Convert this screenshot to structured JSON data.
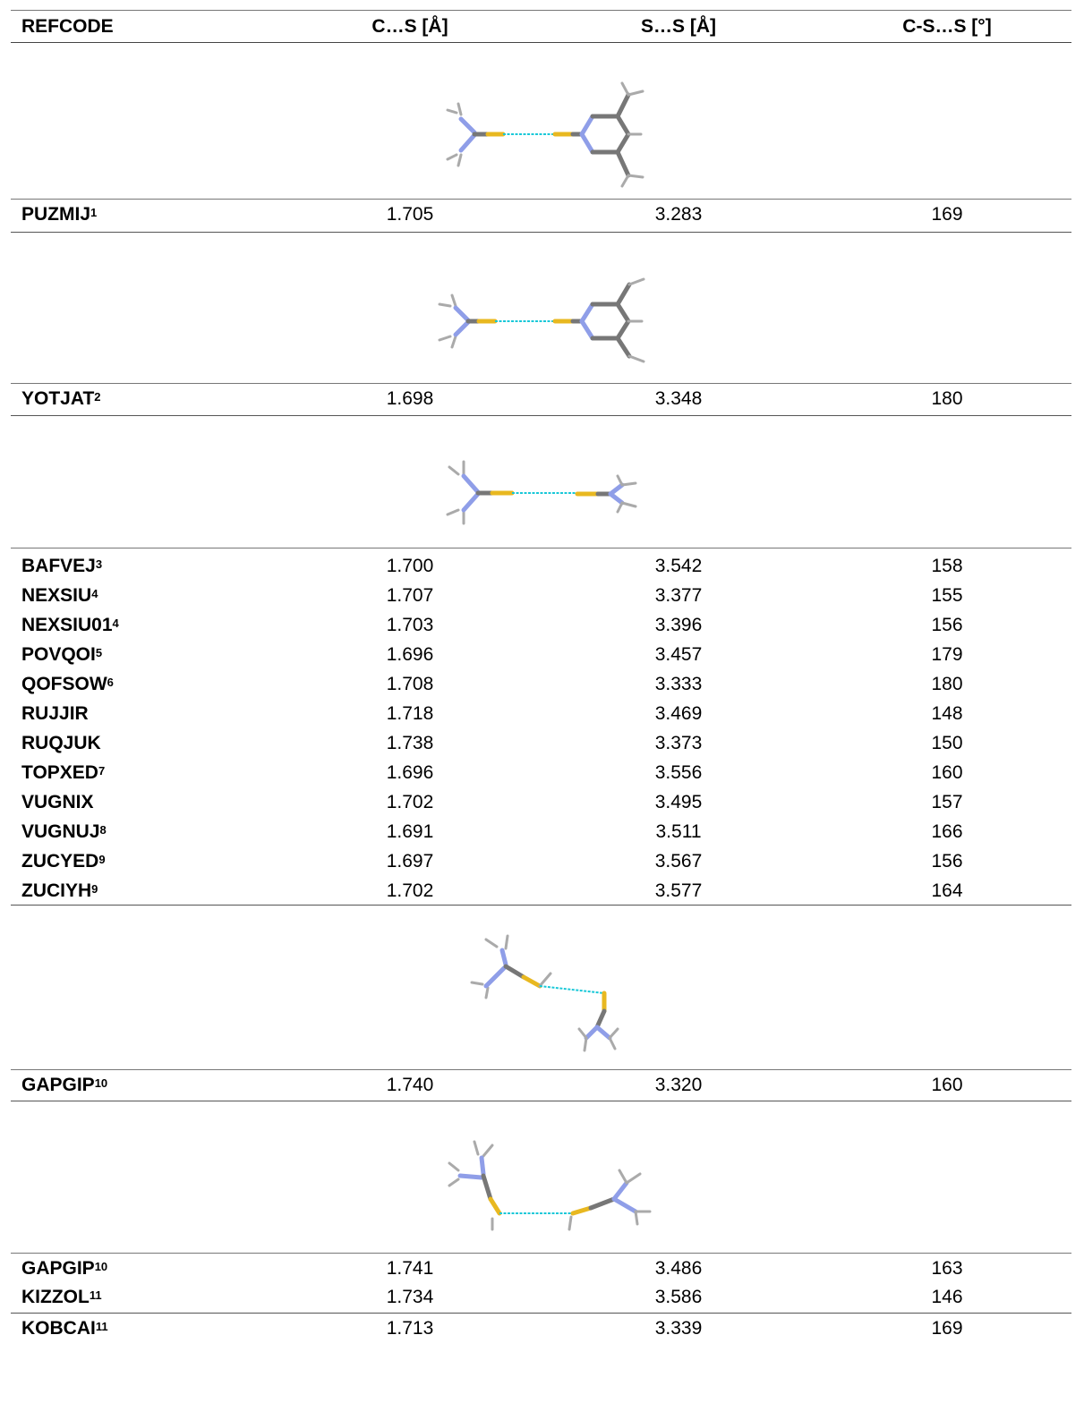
{
  "header": {
    "col0": "REFCODE",
    "col1": "C…S [Å]",
    "col2": "S…S [Å]",
    "col3": "C-S…S [°]"
  },
  "rows": [
    {
      "code": "PUZMIJ",
      "ref": "1",
      "cs": "1.705",
      "ss": "3.283",
      "ang": "169"
    },
    {
      "code": "YOTJAT",
      "ref": "2",
      "cs": "1.698",
      "ss": "3.348",
      "ang": "180"
    },
    {
      "code": "BAFVEJ",
      "ref": "3",
      "cs": "1.700",
      "ss": "3.542",
      "ang": "158"
    },
    {
      "code": "NEXSIU",
      "ref": "4",
      "cs": "1.707",
      "ss": "3.377",
      "ang": "155"
    },
    {
      "code": "NEXSIU01",
      "ref": "4",
      "cs": "1.703",
      "ss": "3.396",
      "ang": "156"
    },
    {
      "code": "POVQOI",
      "ref": "5",
      "cs": "1.696",
      "ss": "3.457",
      "ang": "179"
    },
    {
      "code": "QOFSOW",
      "ref": "6",
      "cs": "1.708",
      "ss": "3.333",
      "ang": "180"
    },
    {
      "code": "RUJJIR",
      "ref": "",
      "cs": "1.718",
      "ss": "3.469",
      "ang": "148"
    },
    {
      "code": "RUQJUK",
      "ref": "",
      "cs": "1.738",
      "ss": "3.373",
      "ang": "150"
    },
    {
      "code": "TOPXED",
      "ref": "7",
      "cs": "1.696",
      "ss": "3.556",
      "ang": "160"
    },
    {
      "code": "VUGNIX",
      "ref": "",
      "cs": "1.702",
      "ss": "3.495",
      "ang": "157"
    },
    {
      "code": "VUGNUJ",
      "ref": "8",
      "cs": "1.691",
      "ss": "3.511",
      "ang": "166"
    },
    {
      "code": "ZUCYED",
      "ref": "9",
      "cs": "1.697",
      "ss": "3.567",
      "ang": "156"
    },
    {
      "code": "ZUCIYH",
      "ref": "9",
      "cs": "1.702",
      "ss": "3.577",
      "ang": "164"
    },
    {
      "code": "GAPGIP",
      "ref": "10",
      "cs": "1.740",
      "ss": "3.320",
      "ang": "160"
    },
    {
      "code": "GAPGIP",
      "ref": "10",
      "cs": "1.741",
      "ss": "3.486",
      "ang": "163"
    },
    {
      "code": "KIZZOL",
      "ref": "11",
      "cs": "1.734",
      "ss": "3.586",
      "ang": "146"
    },
    {
      "code": "KOBCAI",
      "ref": "11",
      "cs": "1.713",
      "ss": "3.339",
      "ang": "169"
    }
  ],
  "colors": {
    "carbon": "#777777",
    "sulfur": "#e8b820",
    "nitrogen": "#8f9ee8",
    "hydrogen": "#aaaaaa",
    "contact": "#19c8d8"
  },
  "figures": [
    {
      "name": "thiourea-pyrimidinethione-contact-icon"
    },
    {
      "name": "thiourea-pyrimidinethione-contact-icon"
    },
    {
      "name": "thiourea-thiourea-linear-contact-icon"
    },
    {
      "name": "thiourea-thiourea-angled-contact-icon"
    },
    {
      "name": "thiourea-thiourea-anti-contact-icon"
    }
  ]
}
